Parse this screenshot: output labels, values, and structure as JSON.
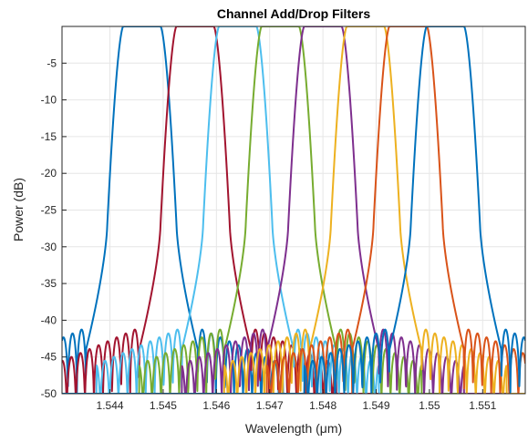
{
  "chart_data": {
    "type": "line",
    "title": "Channel Add/Drop Filters",
    "xlabel": "Wavelength (μm)",
    "ylabel": "Power (dB)",
    "xlim": [
      1.5431,
      1.5518
    ],
    "ylim": [
      -50,
      0
    ],
    "xticks": [
      1.544,
      1.545,
      1.546,
      1.547,
      1.548,
      1.549,
      1.55,
      1.551
    ],
    "xtick_labels": [
      "1.544",
      "1.545",
      "1.546",
      "1.547",
      "1.548",
      "1.549",
      "1.55",
      "1.551"
    ],
    "yticks": [
      -5,
      -10,
      -15,
      -20,
      -25,
      -30,
      -35,
      -40,
      -45,
      -50
    ],
    "ytick_labels": [
      "-5",
      "-10",
      "-15",
      "-20",
      "-25",
      "-30",
      "-35",
      "-40",
      "-45",
      "-50"
    ],
    "grid": true,
    "legend": "none",
    "series_shape": {
      "passband_half_width": 0.00035,
      "edge_width": 0.0003,
      "skirt_level": -27,
      "skirt_width": 0.0004,
      "floor_level": -40,
      "sidelobe_period": 0.00017,
      "sidelobe_extent": 0.0016
    },
    "series": [
      {
        "center": 1.5446,
        "color": "#0072BD"
      },
      {
        "center": 1.5456,
        "color": "#A2142F"
      },
      {
        "center": 1.5464,
        "color": "#4DBEEE"
      },
      {
        "center": 1.5472,
        "color": "#77AC30"
      },
      {
        "center": 1.548,
        "color": "#7E2F8E"
      },
      {
        "center": 1.5488,
        "color": "#EDB120"
      },
      {
        "center": 1.5496,
        "color": "#D95319"
      },
      {
        "center": 1.5503,
        "color": "#0072BD"
      }
    ]
  }
}
